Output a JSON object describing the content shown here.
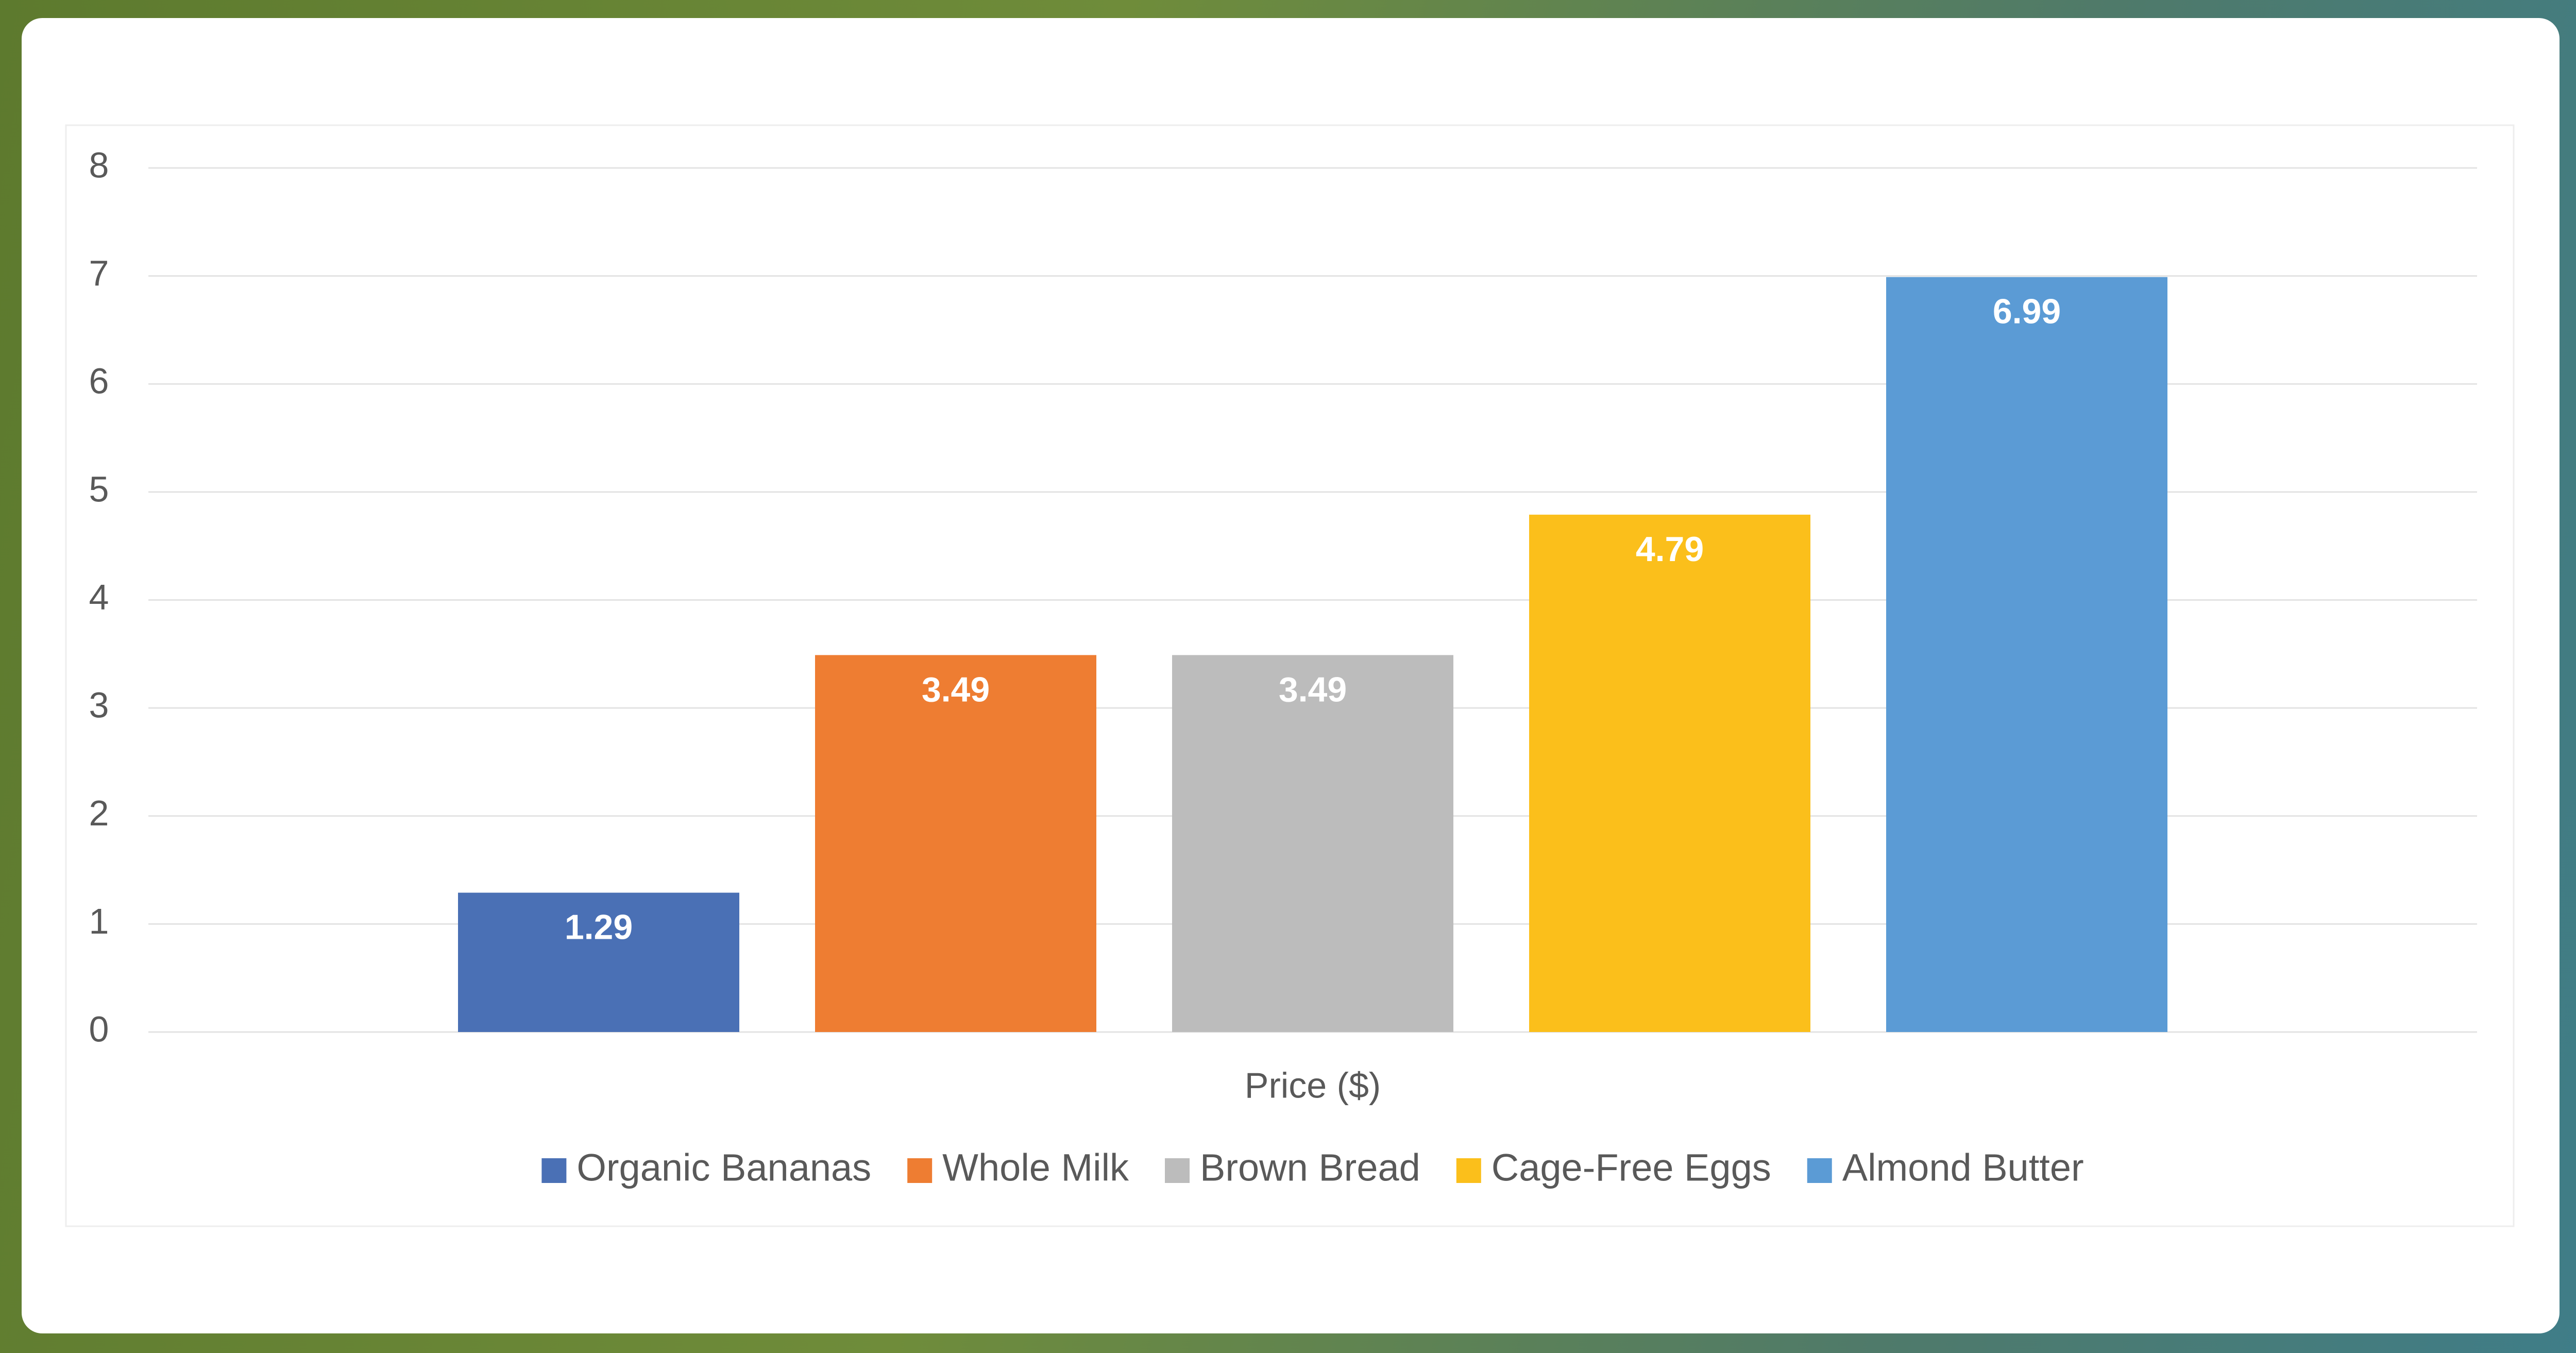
{
  "chart_data": {
    "type": "bar",
    "categories": [
      "Price ($)"
    ],
    "series": [
      {
        "name": "Organic Bananas",
        "color": "#4a70b5",
        "values": [
          1.29
        ]
      },
      {
        "name": "Whole Milk",
        "color": "#ee7d32",
        "values": [
          3.49
        ]
      },
      {
        "name": "Brown Bread",
        "color": "#bcbcbc",
        "values": [
          3.49
        ]
      },
      {
        "name": "Cage-Free Eggs",
        "color": "#fbbf1b",
        "values": [
          4.79
        ]
      },
      {
        "name": "Almond Butter",
        "color": "#5b9bd5",
        "values": [
          6.99
        ]
      }
    ],
    "ylim": [
      0,
      8
    ],
    "yticks": [
      0,
      1,
      2,
      3,
      4,
      5,
      6,
      7,
      8
    ],
    "grid": true,
    "legend": "bottom"
  }
}
